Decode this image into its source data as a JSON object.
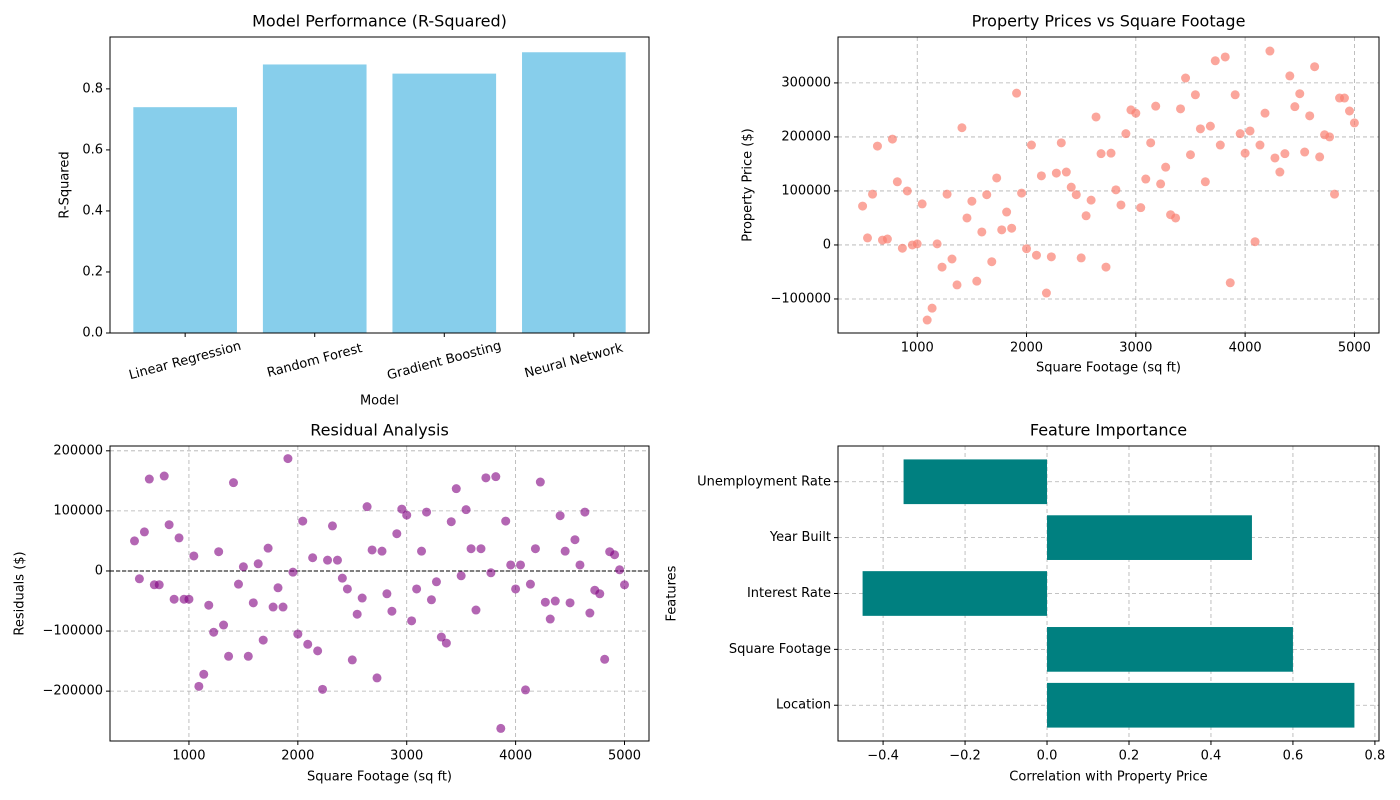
{
  "chart_data": [
    {
      "type": "bar",
      "title": "Model Performance (R-Squared)",
      "x_label": "Model",
      "y_label": "R-Squared",
      "categories": [
        "Linear Regression",
        "Random Forest",
        "Gradient Boosting",
        "Neural Network"
      ],
      "values": [
        0.74,
        0.88,
        0.85,
        0.92
      ],
      "color": "#87ceeb",
      "ylim": [
        0,
        0.97
      ],
      "yticks": [
        {
          "value": 0,
          "label": "0.0"
        },
        0.2,
        0.4,
        0.6,
        0.8
      ],
      "grid": false,
      "label_rotation": 15
    },
    {
      "type": "scatter",
      "title": "Property Prices vs Square Footage",
      "x_label": "Square Footage (sq ft)",
      "y_label": "Property Price ($)",
      "color": "#fa8072",
      "alpha": 0.7,
      "grid": true,
      "xlim": [
        275,
        5225
      ],
      "xticks": [
        1000,
        2000,
        3000,
        4000,
        5000
      ],
      "ylim": [
        -163000,
        385000
      ],
      "yticks": [
        {
          "value": -100000,
          "label": "−100000"
        },
        0,
        100000,
        200000,
        300000
      ],
      "x": [
        500,
        545,
        591,
        636,
        682,
        727,
        773,
        818,
        864,
        909,
        955,
        1000,
        1045,
        1091,
        1136,
        1182,
        1227,
        1273,
        1318,
        1364,
        1409,
        1455,
        1500,
        1545,
        1591,
        1636,
        1682,
        1727,
        1773,
        1818,
        1864,
        1909,
        1955,
        2000,
        2045,
        2091,
        2136,
        2182,
        2227,
        2273,
        2318,
        2364,
        2409,
        2455,
        2500,
        2545,
        2591,
        2636,
        2682,
        2727,
        2773,
        2818,
        2864,
        2909,
        2955,
        3000,
        3045,
        3091,
        3136,
        3182,
        3227,
        3273,
        3318,
        3364,
        3409,
        3455,
        3500,
        3545,
        3591,
        3636,
        3682,
        3727,
        3773,
        3818,
        3864,
        3909,
        3955,
        4000,
        4045,
        4091,
        4136,
        4182,
        4227,
        4273,
        4318,
        4364,
        4409,
        4455,
        4500,
        4545,
        4591,
        4636,
        4682,
        4727,
        4773,
        4818,
        4864,
        4909,
        4955,
        5000
      ],
      "values": [
        72000,
        13000,
        94000,
        183000,
        9000,
        11000,
        196000,
        117000,
        -6000,
        100000,
        0,
        2000,
        76000,
        -139000,
        -117000,
        2000,
        -41000,
        94000,
        -26000,
        -74000,
        217000,
        50000,
        81000,
        -67000,
        24000,
        93000,
        -31000,
        124000,
        28000,
        61000,
        31000,
        281000,
        96000,
        -7000,
        185000,
        -19000,
        128000,
        -89000,
        -22000,
        133000,
        189000,
        135000,
        107000,
        93000,
        -24000,
        54000,
        83000,
        237000,
        169000,
        -41000,
        170000,
        102000,
        74000,
        206000,
        250000,
        244000,
        69000,
        122000,
        189000,
        257000,
        113000,
        144000,
        56000,
        50000,
        252000,
        309000,
        167000,
        278000,
        215000,
        117000,
        220000,
        341000,
        185000,
        348000,
        -70000,
        278000,
        206000,
        170000,
        211000,
        6000,
        185000,
        244000,
        359000,
        161000,
        135000,
        169000,
        313000,
        256000,
        280000,
        172000,
        239000,
        330000,
        163000,
        204000,
        200000,
        94000,
        272000,
        272000,
        248000,
        226000
      ]
    },
    {
      "type": "scatter",
      "title": "Residual Analysis",
      "x_label": "Square Footage (sq ft)",
      "y_label": "Residuals ($)",
      "color": "#800080",
      "alpha": 0.6,
      "grid": true,
      "reference_line": 0,
      "xlim": [
        275,
        5225
      ],
      "xticks": [
        1000,
        2000,
        3000,
        4000,
        5000
      ],
      "ylim": [
        -283000,
        208000
      ],
      "yticks": [
        {
          "value": -200000,
          "label": "−200000"
        },
        {
          "value": -100000,
          "label": "−100000"
        },
        0,
        100000,
        200000
      ],
      "x": [
        500,
        545,
        591,
        636,
        682,
        727,
        773,
        818,
        864,
        909,
        955,
        1000,
        1045,
        1091,
        1136,
        1182,
        1227,
        1273,
        1318,
        1364,
        1409,
        1455,
        1500,
        1545,
        1591,
        1636,
        1682,
        1727,
        1773,
        1818,
        1864,
        1909,
        1955,
        2000,
        2045,
        2091,
        2136,
        2182,
        2227,
        2273,
        2318,
        2364,
        2409,
        2455,
        2500,
        2545,
        2591,
        2636,
        2682,
        2727,
        2773,
        2818,
        2864,
        2909,
        2955,
        3000,
        3045,
        3091,
        3136,
        3182,
        3227,
        3273,
        3318,
        3364,
        3409,
        3455,
        3500,
        3545,
        3591,
        3636,
        3682,
        3727,
        3773,
        3818,
        3864,
        3909,
        3955,
        4000,
        4045,
        4091,
        4136,
        4182,
        4227,
        4273,
        4318,
        4364,
        4409,
        4455,
        4500,
        4545,
        4591,
        4636,
        4682,
        4727,
        4773,
        4818,
        4864,
        4909,
        4955,
        5000
      ],
      "values": [
        50000,
        -13000,
        65000,
        153000,
        -23000,
        -23000,
        158000,
        77000,
        -47000,
        55000,
        -47000,
        -47000,
        25000,
        -192000,
        -172000,
        -57000,
        -102000,
        32000,
        -90000,
        -142000,
        147000,
        -22000,
        7000,
        -142000,
        -53000,
        12000,
        -115000,
        38000,
        -60000,
        -28000,
        -60000,
        187000,
        -2000,
        -105000,
        83000,
        -122000,
        22000,
        -133000,
        -197000,
        18000,
        75000,
        18000,
        -12000,
        -30000,
        -148000,
        -72000,
        -45000,
        107000,
        35000,
        -178000,
        33000,
        -38000,
        -67000,
        62000,
        103000,
        93000,
        -83000,
        -30000,
        33000,
        98000,
        -48000,
        -18000,
        -110000,
        -120000,
        82000,
        137000,
        -8000,
        102000,
        37000,
        -65000,
        37000,
        155000,
        -3000,
        157000,
        -262000,
        83000,
        10000,
        -30000,
        10000,
        -198000,
        -22000,
        37000,
        148000,
        -52000,
        -80000,
        -50000,
        92000,
        33000,
        -53000,
        52000,
        10000,
        98000,
        -70000,
        -32000,
        -38000,
        -147000,
        32000,
        27000,
        2000,
        -23000
      ]
    },
    {
      "type": "barh",
      "title": "Feature Importance",
      "x_label": "Correlation with Property Price",
      "y_label": "Features",
      "categories": [
        "Location",
        "Square Footage",
        "Interest Rate",
        "Year Built",
        "Unemployment Rate"
      ],
      "values": [
        0.75,
        0.6,
        -0.45,
        0.5,
        -0.35
      ],
      "color": "#008080",
      "grid": true,
      "xlim": [
        -0.51,
        0.81
      ],
      "xticks": [
        {
          "value": -0.4,
          "label": "−0.4"
        },
        {
          "value": -0.2,
          "label": "−0.2"
        },
        {
          "value": 0,
          "label": "0.0"
        },
        0.2,
        0.4,
        0.6,
        0.8
      ]
    }
  ]
}
